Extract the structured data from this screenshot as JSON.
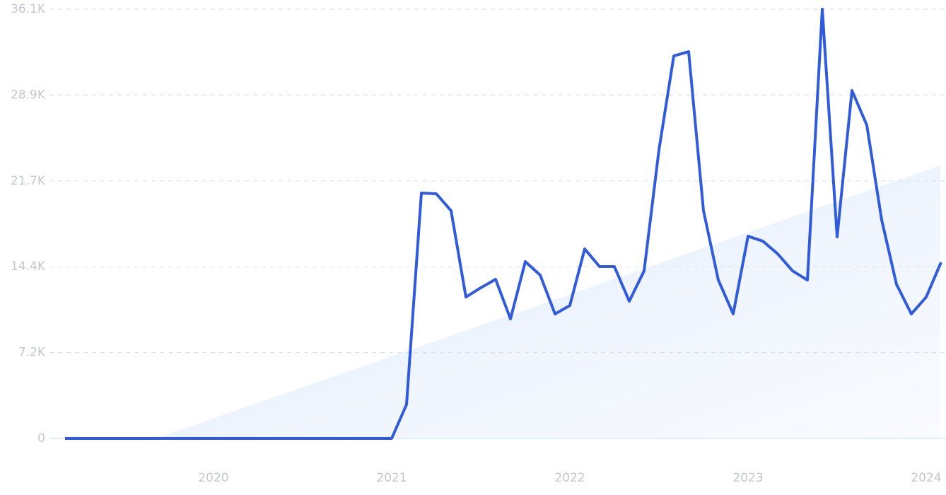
{
  "chart_data": {
    "type": "line",
    "categories": [
      null,
      null,
      null,
      null,
      null,
      null,
      null,
      null,
      null,
      null,
      "2020",
      null,
      null,
      null,
      null,
      null,
      null,
      null,
      null,
      null,
      null,
      null,
      "2021",
      null,
      null,
      null,
      null,
      null,
      null,
      null,
      null,
      null,
      null,
      null,
      "2022",
      null,
      null,
      null,
      null,
      null,
      null,
      null,
      null,
      null,
      null,
      null,
      "2023",
      null,
      null,
      null,
      null,
      null,
      null,
      null,
      null,
      null,
      null,
      null,
      "2024",
      null
    ],
    "series": [
      {
        "color": "#2f5bdc",
        "values": [
          0,
          0,
          0,
          0,
          0,
          0,
          0,
          0,
          0,
          0,
          0,
          0,
          0,
          0,
          0,
          0,
          0,
          0,
          0,
          0,
          0,
          0,
          0,
          2855,
          20640,
          20580,
          19150,
          11890,
          12670,
          13380,
          10050,
          14870,
          13740,
          10470,
          11180,
          15940,
          14450,
          14450,
          11540,
          14090,
          24260,
          32170,
          32530,
          19150,
          13320,
          10470,
          17010,
          16590,
          15520,
          14090,
          13320,
          36100,
          16950,
          29260,
          26350,
          18380,
          12960,
          10470,
          11890,
          14810
        ]
      }
    ],
    "ylim": [
      0,
      36100
    ],
    "yticks": [
      0,
      {
        "value": 7220,
        "label": "7.2K"
      },
      {
        "value": 14440,
        "label": "14.4K"
      },
      {
        "value": 21660,
        "label": "21.7K"
      },
      {
        "value": 28880,
        "label": "28.9K"
      },
      {
        "value": 36100,
        "label": "36.1K"
      }
    ],
    "grid": true
  }
}
